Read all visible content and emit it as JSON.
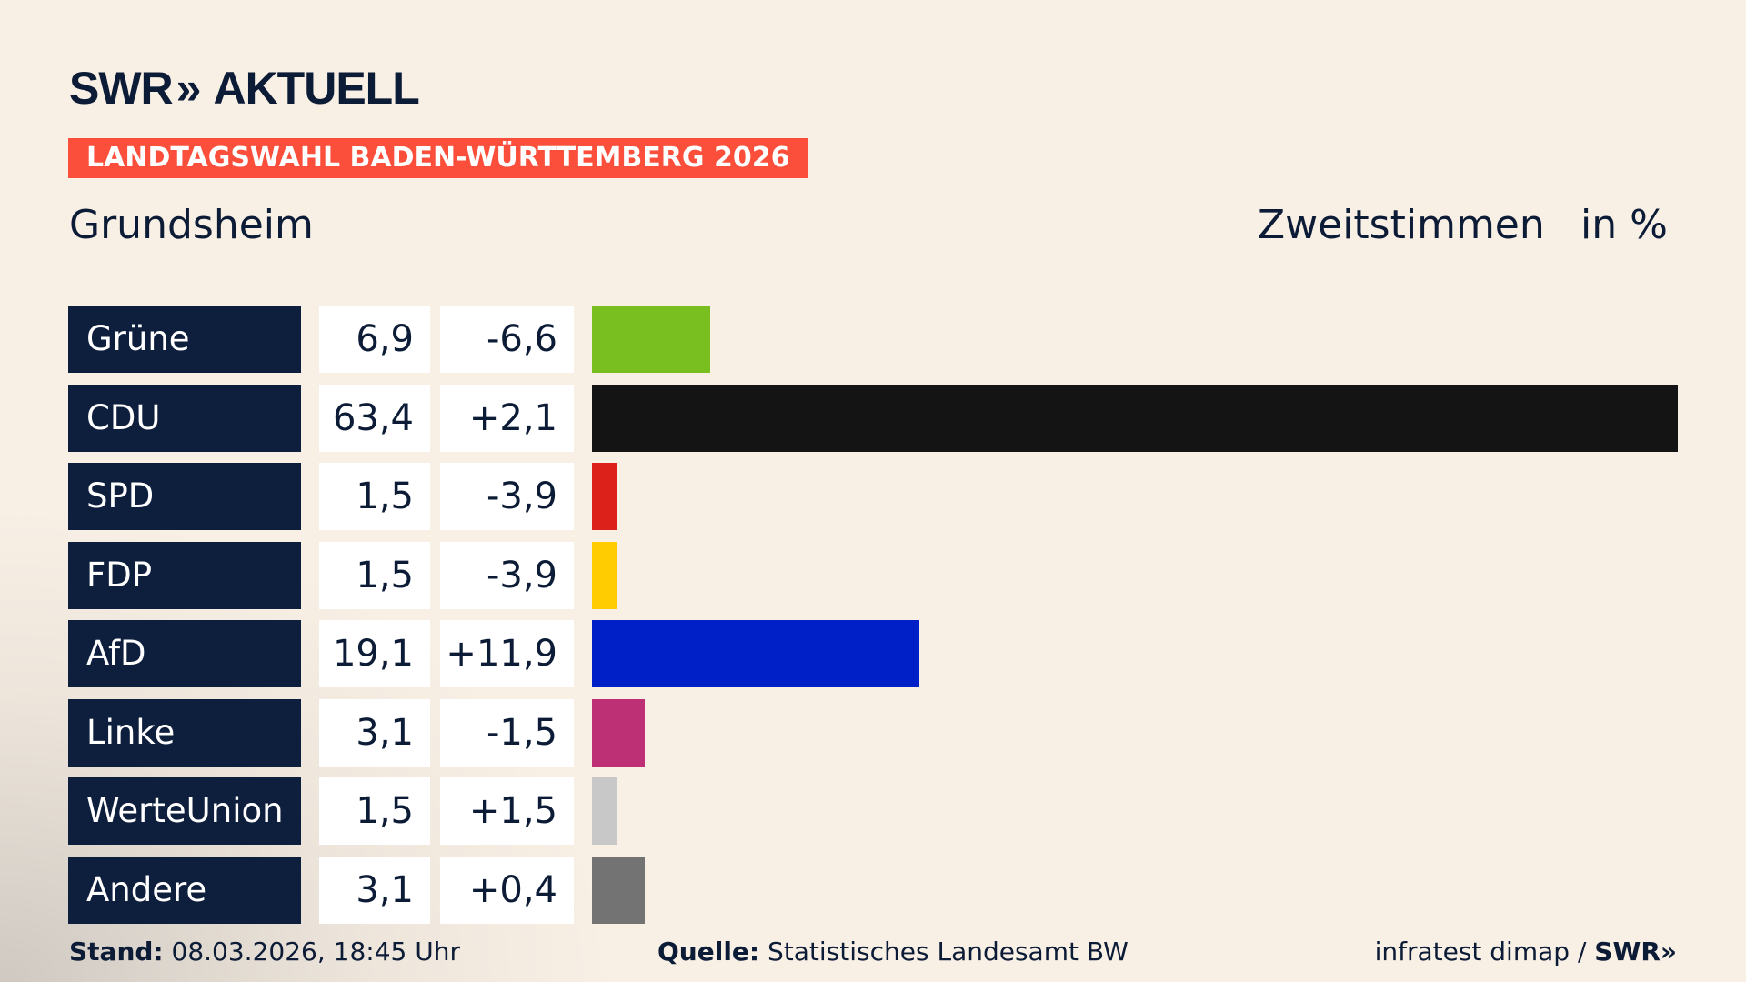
{
  "header": {
    "logo": "SWR",
    "logo_suffix": "AKTUELL",
    "banner": "LANDTAGSWAHL BADEN-WÜRTTEMBERG 2026",
    "place": "Grundsheim",
    "vote_type": "Zweitstimmen",
    "unit": "in %"
  },
  "chart_data": {
    "type": "bar",
    "orientation": "horizontal",
    "categories": [
      "Grüne",
      "CDU",
      "SPD",
      "FDP",
      "AfD",
      "Linke",
      "WerteUnion",
      "Andere"
    ],
    "values": [
      6.9,
      63.4,
      1.5,
      1.5,
      19.1,
      3.1,
      1.5,
      3.1
    ],
    "values_label": [
      "6,9",
      "63,4",
      "1,5",
      "1,5",
      "19,1",
      "3,1",
      "1,5",
      "3,1"
    ],
    "diff": [
      -6.6,
      2.1,
      -3.9,
      -3.9,
      11.9,
      -1.5,
      1.5,
      0.4
    ],
    "diff_label": [
      "-6,6",
      "+2,1",
      "-3,9",
      "-3,9",
      "+11,9",
      "-1,5",
      "+1,5",
      "+0,4"
    ],
    "colors": [
      "#79bf1f",
      "#141414",
      "#db2119",
      "#fecc00",
      "#0020c7",
      "#be3075",
      "#c8c8c8",
      "#737373"
    ],
    "xlim": [
      0,
      63.4
    ]
  },
  "footer": {
    "stand_label": "Stand:",
    "stand_value": " 08.03.2026, 18:45 Uhr",
    "source_label": "Quelle:",
    "source_value": " Statistisches Landesamt BW",
    "credit": "infratest dimap / ",
    "credit_logo": "SWR"
  }
}
